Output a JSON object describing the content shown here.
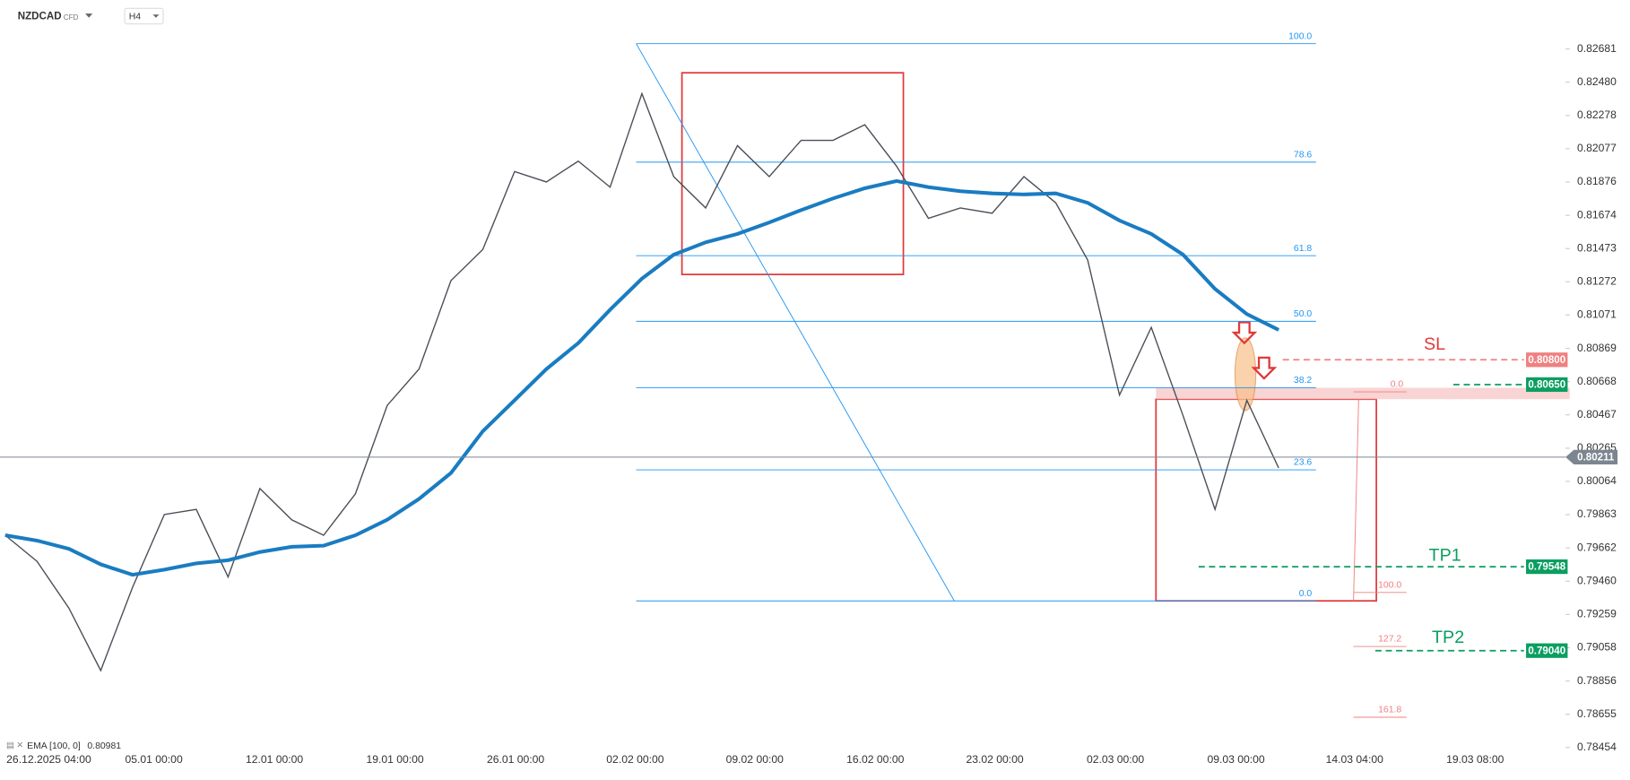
{
  "header": {
    "symbol": "NZDCAD",
    "market": "CFD",
    "timeframe": "H4"
  },
  "chart_data": {
    "type": "line",
    "ylim": [
      0.78448,
      0.82977
    ],
    "yticks": [
      0.82681,
      {
        "value": 0.8248,
        "label": "0.82480"
      },
      0.82278,
      0.82077,
      0.81876,
      0.81674,
      0.81473,
      0.81272,
      0.81071,
      0.80869,
      0.80668,
      0.80467,
      0.80265,
      0.80064,
      0.79863,
      0.79662,
      {
        "value": 0.7946,
        "label": "0.79460"
      },
      0.79259,
      0.79058,
      0.78856,
      0.78655,
      0.78454
    ],
    "xticks": [
      "26.12.2025 04:00",
      "05.01 00:00",
      "12.01 00:00",
      "19.01 00:00",
      "26.01 00:00",
      "02.02 00:00",
      "09.02 00:00",
      "16.02 00:00",
      "23.02 00:00",
      "02.03 00:00",
      "09.03 00:00",
      "14.03 04:00",
      "19.03 08:00"
    ],
    "series": [
      {
        "color": "#4a4f57",
        "values": [
          0.79738,
          0.7958,
          0.79297,
          0.7892,
          0.79423,
          0.79864,
          0.79895,
          0.79486,
          0.80021,
          0.79832,
          0.79738,
          0.79989,
          0.80524,
          0.80744,
          0.81279,
          0.81467,
          0.81939,
          0.81876,
          0.82002,
          0.81845,
          0.82411,
          0.81908,
          0.81719,
          0.82096,
          0.81908,
          0.82128,
          0.82128,
          0.82222,
          0.81971,
          0.81656,
          0.81719,
          0.81687,
          0.81908,
          0.8175,
          0.81404,
          0.80587,
          0.80996,
          0.80461,
          0.79895,
          0.80555,
          0.80146
        ]
      },
      {
        "name": "EMA [100, 0]",
        "color": "#1a7cc1",
        "values": [
          0.79738,
          0.79706,
          0.79656,
          0.79562,
          0.79499,
          0.7953,
          0.79568,
          0.79587,
          0.79637,
          0.79668,
          0.79675,
          0.79738,
          0.79832,
          0.79958,
          0.80115,
          0.80367,
          0.80555,
          0.80744,
          0.80901,
          0.81103,
          0.81291,
          0.81436,
          0.81511,
          0.81562,
          0.81631,
          0.81706,
          0.81776,
          0.81838,
          0.81882,
          0.81845,
          0.8182,
          0.81807,
          0.81801,
          0.81807,
          0.8175,
          0.81643,
          0.81562,
          0.81436,
          0.81229,
          0.81077,
          0.80981
        ]
      }
    ],
    "fib_levels": [
      {
        "label": "100.0",
        "price": 0.82713
      },
      {
        "label": "78.6",
        "price": 0.81996
      },
      {
        "label": "61.8",
        "price": 0.8143
      },
      {
        "label": "50.0",
        "price": 0.81033
      },
      {
        "label": "38.2",
        "price": 0.80631
      },
      {
        "label": "23.6",
        "price": 0.80134
      },
      {
        "label": "0.0",
        "price": 0.79341
      }
    ],
    "extension_levels": [
      {
        "label": "0.0",
        "price": 0.80606
      },
      {
        "label": "100.0",
        "price": 0.79392
      },
      {
        "label": "127.2",
        "price": 0.79065
      },
      {
        "label": "161.8",
        "price": 0.78637
      }
    ],
    "price_lines": [
      {
        "name": "SL",
        "value": 0.808,
        "value_label": "0.80800",
        "color": "#f08080"
      },
      {
        "value": 0.8065,
        "value_label": "0.80650",
        "color": "#0b9e61"
      },
      {
        "name": "TP1",
        "value": 0.79548,
        "value_label": "0.79548",
        "color": "#0b9e61"
      },
      {
        "name": "TP2",
        "value": 0.7904,
        "value_label": "0.79040",
        "color": "#0b9e61"
      },
      {
        "value": 0.80211,
        "value_label": "0.80211",
        "color": "#7d8590"
      }
    ]
  }
}
